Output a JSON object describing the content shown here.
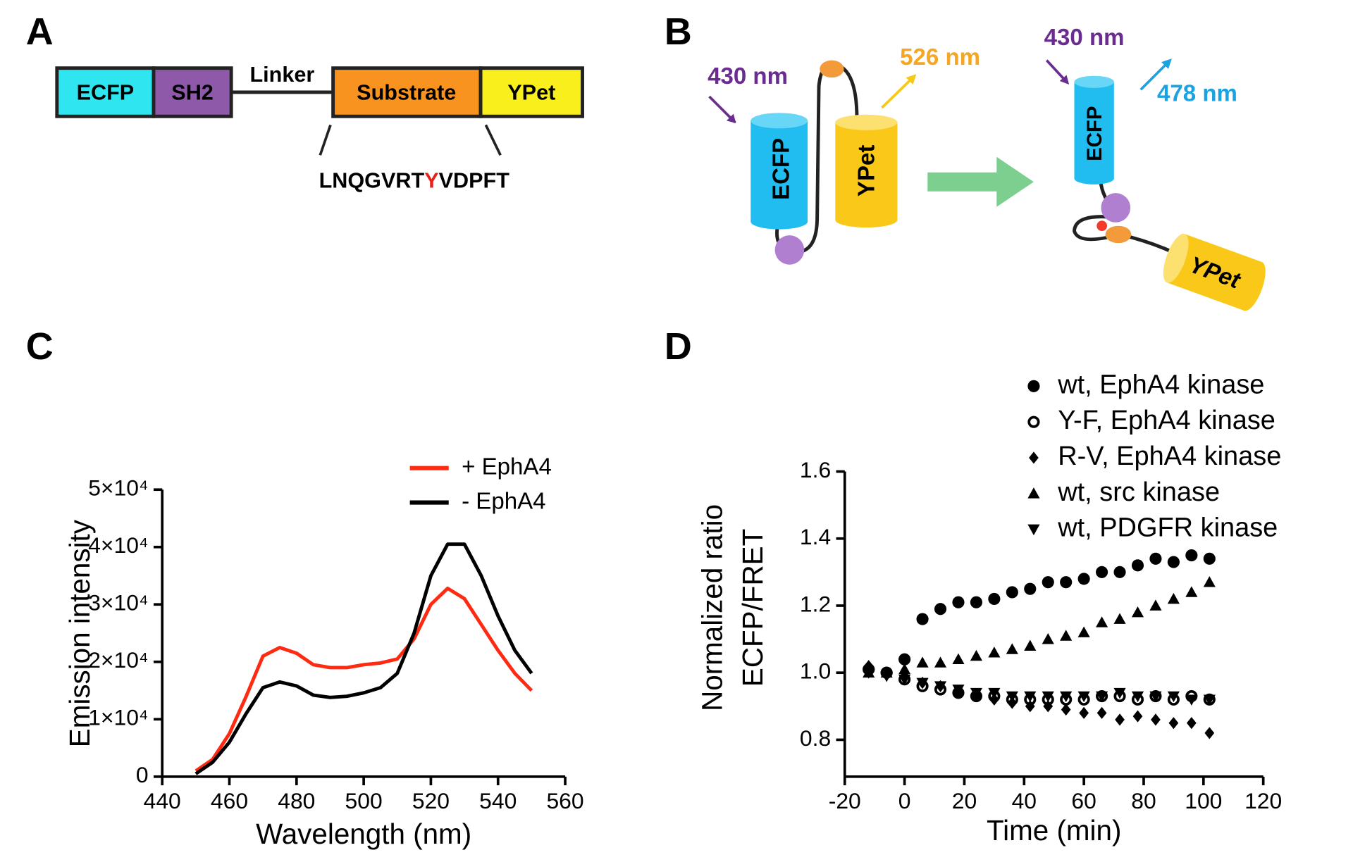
{
  "panel_a": {
    "letter": "A",
    "ecfp": "ECFP",
    "sh2": "SH2",
    "linker": "Linker",
    "substrate": "Substrate",
    "ypet": "YPet",
    "sequence": [
      "LNQGVRT",
      "Y",
      "VDPFT"
    ]
  },
  "panel_b": {
    "letter": "B",
    "before": {
      "excitation": "430 nm",
      "emission": "526 nm",
      "ecfp": "ECFP",
      "ypet": "YPet"
    },
    "after": {
      "excitation": "430 nm",
      "emission": "478 nm",
      "ecfp": "ECFP",
      "ypet": "YPet"
    }
  },
  "chart_data": [
    {
      "type": "line",
      "label": "C",
      "xlabel": "Wavelength (nm)",
      "ylabel": [
        "Emission intensity"
      ],
      "x": [
        450,
        455,
        460,
        465,
        470,
        475,
        480,
        485,
        490,
        495,
        500,
        505,
        510,
        515,
        520,
        525,
        530,
        535,
        540,
        545,
        550
      ],
      "series": [
        {
          "name": "+ EphA4",
          "color": "#ff2a12",
          "values": [
            1000,
            3000,
            7500,
            14000,
            21000,
            22500,
            21500,
            19500,
            19000,
            19000,
            19500,
            19800,
            20500,
            24000,
            30000,
            32800,
            31000,
            26500,
            22000,
            18000,
            15000
          ]
        },
        {
          "name": "- EphA4",
          "color": "#000000",
          "values": [
            500,
            2500,
            6000,
            11000,
            15500,
            16500,
            15800,
            14200,
            13800,
            14000,
            14600,
            15500,
            18000,
            25000,
            35000,
            40500,
            40500,
            35000,
            28000,
            22000,
            18000
          ]
        }
      ],
      "xlim": [
        440,
        560
      ],
      "xticks": [
        440,
        460,
        480,
        500,
        520,
        540,
        560
      ],
      "ylim": [
        0,
        50000
      ],
      "yticks": [
        0,
        {
          "value": 10000,
          "label": "1×10⁴"
        },
        {
          "value": 20000,
          "label": "2×10⁴"
        },
        {
          "value": 30000,
          "label": "3×10⁴"
        },
        {
          "value": 40000,
          "label": "4×10⁴"
        },
        {
          "value": 50000,
          "label": "5×10⁴"
        }
      ],
      "legend": "top-right",
      "grid": false
    },
    {
      "type": "scatter",
      "label": "D",
      "xlabel": "Time (min)",
      "ylabel": [
        "Normalized ratio",
        "ECFP/FRET"
      ],
      "x": [
        -12,
        -6,
        0,
        6,
        12,
        18,
        24,
        30,
        36,
        42,
        48,
        54,
        60,
        66,
        72,
        78,
        84,
        90,
        96,
        102
      ],
      "series": [
        {
          "name": "wt, EphA4 kinase",
          "color": "#000000",
          "marker": "circle",
          "values": [
            1.01,
            1.0,
            1.04,
            1.16,
            1.19,
            1.21,
            1.21,
            1.22,
            1.24,
            1.25,
            1.27,
            1.27,
            1.28,
            1.3,
            1.3,
            1.32,
            1.34,
            1.33,
            1.35,
            1.34
          ]
        },
        {
          "name": "Y-F, EphA4 kinase",
          "color": "#000000",
          "marker": "open-circle",
          "values": [
            1.01,
            1.0,
            0.98,
            0.96,
            0.95,
            0.94,
            0.93,
            0.93,
            0.92,
            0.92,
            0.92,
            0.92,
            0.92,
            0.93,
            0.93,
            0.92,
            0.93,
            0.92,
            0.93,
            0.92
          ]
        },
        {
          "name": "R-V, EphA4 kinase",
          "color": "#000000",
          "marker": "diamond",
          "values": [
            1.02,
            1.0,
            0.99,
            0.97,
            0.96,
            0.94,
            0.93,
            0.92,
            0.91,
            0.9,
            0.9,
            0.89,
            0.88,
            0.88,
            0.86,
            0.87,
            0.86,
            0.85,
            0.85,
            0.82
          ]
        },
        {
          "name": "wt, src kinase",
          "color": "#000000",
          "marker": "triangle-up",
          "values": [
            1.0,
            1.0,
            1.01,
            1.03,
            1.03,
            1.04,
            1.05,
            1.06,
            1.07,
            1.08,
            1.1,
            1.11,
            1.12,
            1.15,
            1.16,
            1.18,
            1.2,
            1.22,
            1.24,
            1.27
          ]
        },
        {
          "name": "wt, PDGFR kinase",
          "color": "#000000",
          "marker": "triangle-down",
          "values": [
            1.0,
            0.99,
            0.98,
            0.97,
            0.96,
            0.95,
            0.94,
            0.94,
            0.93,
            0.93,
            0.93,
            0.93,
            0.93,
            0.93,
            0.94,
            0.93,
            0.93,
            0.93,
            0.92,
            0.92
          ]
        }
      ],
      "xlim": [
        -20,
        120
      ],
      "xticks": [
        -20,
        0,
        20,
        40,
        60,
        80,
        100,
        120
      ],
      "ylim": [
        0.69,
        1.6
      ],
      "yticks": [
        0.8,
        {
          "value": 1,
          "label": "1.0"
        },
        1.2,
        1.4,
        1.6
      ],
      "legend": "top-right",
      "grid": false
    }
  ]
}
